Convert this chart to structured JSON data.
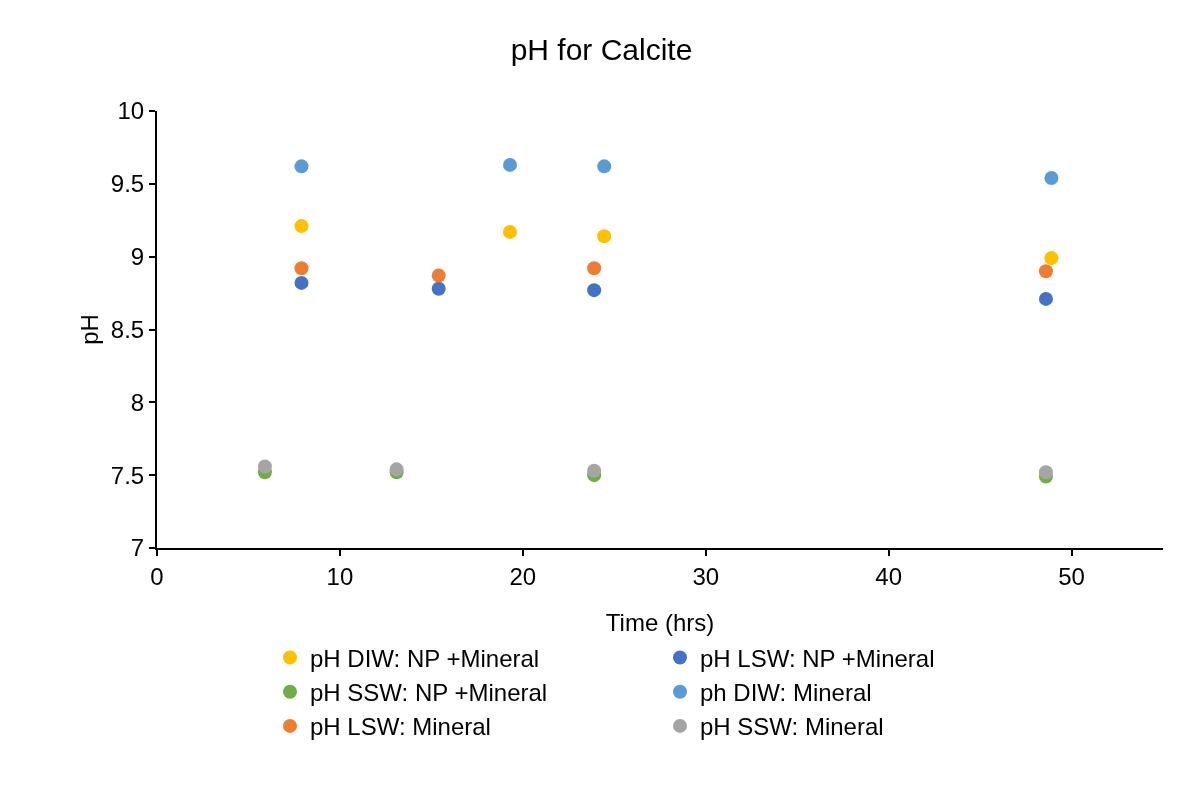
{
  "chart_data": {
    "type": "scatter",
    "title": "pH for Calcite",
    "xlabel": "Time (hrs)",
    "ylabel": "pH",
    "marker": "circle",
    "grid": false,
    "legend": "bottom",
    "xlim": [
      0,
      55
    ],
    "xticks": [
      0,
      10,
      20,
      30,
      40,
      50
    ],
    "ylim": [
      7,
      10
    ],
    "yticks": [
      7,
      7.5,
      8,
      8.5,
      9,
      9.5,
      10
    ],
    "series": [
      {
        "name": "pH DIW: NP +Mineral",
        "color": "#ffc000",
        "x": [
          7.9,
          19.3,
          24.45,
          48.9
        ],
        "values": [
          9.21,
          9.17,
          9.14,
          8.99
        ]
      },
      {
        "name": "pH LSW: NP +Mineral",
        "color": "#4472c4",
        "x": [
          7.9,
          15.4,
          23.9,
          48.6
        ],
        "values": [
          8.82,
          8.78,
          8.77,
          8.71
        ]
      },
      {
        "name": "pH SSW: NP +Mineral",
        "color": "#70ad47",
        "x": [
          5.9,
          13.1,
          23.9,
          48.6
        ],
        "values": [
          7.52,
          7.52,
          7.5,
          7.49
        ]
      },
      {
        "name": "ph DIW: Mineral",
        "color": "#5b9bd5",
        "x": [
          7.9,
          19.3,
          24.45,
          48.9
        ],
        "values": [
          9.62,
          9.63,
          9.62,
          9.54
        ]
      },
      {
        "name": "pH LSW: Mineral",
        "color": "#ed7d31",
        "x": [
          7.9,
          15.4,
          23.9,
          48.6
        ],
        "values": [
          8.92,
          8.87,
          8.92,
          8.9
        ]
      },
      {
        "name": "pH SSW: Mineral",
        "color": "#a5a5a5",
        "x": [
          5.9,
          13.1,
          23.9,
          48.6
        ],
        "values": [
          7.56,
          7.54,
          7.53,
          7.52
        ]
      }
    ]
  }
}
